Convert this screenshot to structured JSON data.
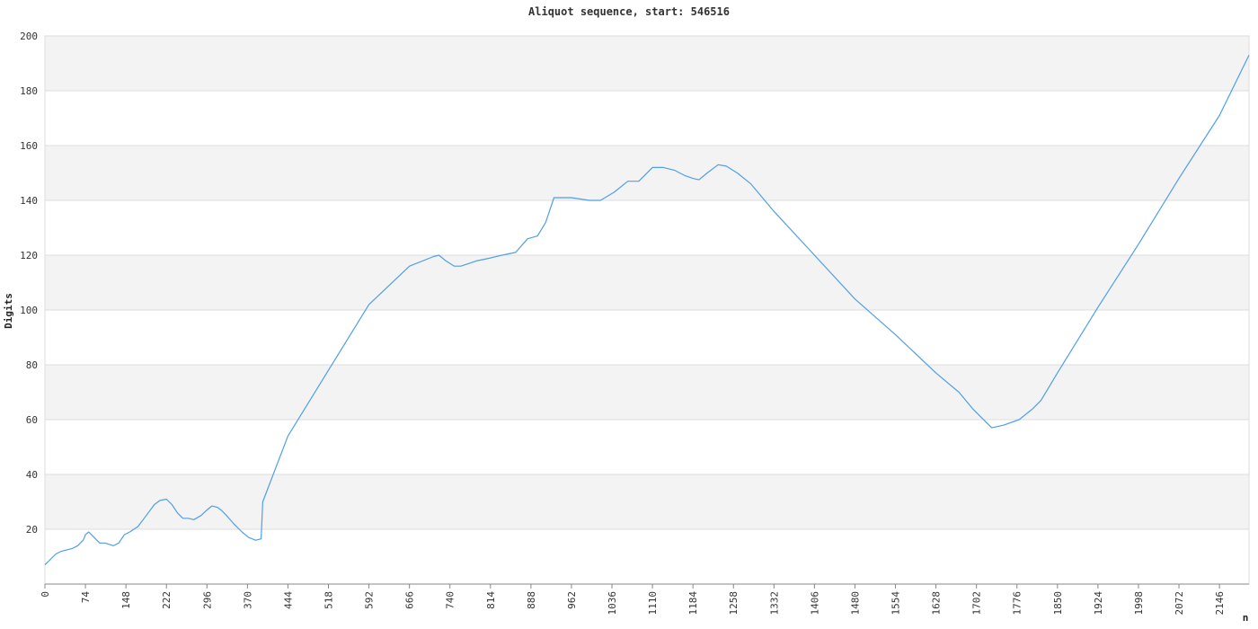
{
  "chart_data": {
    "type": "line",
    "title": "Aliquot sequence, start: 546516",
    "xlabel": "n",
    "ylabel": "Digits",
    "xlim": [
      0,
      2200
    ],
    "ylim": [
      0,
      200
    ],
    "x_ticks": [
      0,
      74,
      148,
      222,
      296,
      370,
      444,
      518,
      592,
      666,
      740,
      814,
      888,
      962,
      1036,
      1110,
      1184,
      1258,
      1332,
      1406,
      1480,
      1554,
      1628,
      1702,
      1776,
      1850,
      1924,
      1998,
      2072,
      2146
    ],
    "y_ticks": [
      20,
      40,
      60,
      80,
      100,
      120,
      140,
      160,
      180,
      200
    ],
    "grid": "horizontal-bands",
    "band_color": "#f3f3f3",
    "line_color": "#4f9fe8",
    "series": [
      {
        "x": [
          0,
          10,
          20,
          30,
          50,
          60,
          70,
          74,
          80,
          90,
          100,
          110,
          125,
          135,
          145,
          155,
          170,
          185,
          200,
          210,
          222,
          232,
          242,
          252,
          262,
          272,
          285,
          296,
          305,
          315,
          322,
          332,
          345,
          360,
          372,
          385,
          395,
          398,
          444,
          518,
          592,
          666,
          710,
          720,
          732,
          748,
          760,
          790,
          814,
          835,
          860,
          882,
          900,
          915,
          930,
          962,
          995,
          1015,
          1040,
          1065,
          1085,
          1110,
          1130,
          1150,
          1170,
          1184,
          1195,
          1210,
          1230,
          1245,
          1265,
          1290,
          1332,
          1406,
          1480,
          1554,
          1628,
          1670,
          1695,
          1730,
          1752,
          1780,
          1805,
          1820,
          1850,
          1924,
          1998,
          2072,
          2146,
          2200
        ],
        "values": [
          7,
          9,
          11,
          12,
          13,
          14,
          16,
          18,
          19,
          17,
          15,
          15,
          14,
          15,
          18,
          19,
          21,
          25,
          29,
          30.5,
          31,
          29,
          26,
          24,
          24,
          23.5,
          25,
          27,
          28.5,
          28,
          27,
          25,
          22,
          19,
          17,
          16,
          16.5,
          30,
          54,
          78,
          102,
          116,
          119.5,
          120,
          118,
          116,
          116,
          118,
          119,
          120,
          121,
          126,
          127,
          132,
          141,
          141,
          140,
          140,
          143,
          147,
          147,
          152,
          152,
          151,
          149,
          148,
          147.5,
          150,
          153,
          152.5,
          150,
          146,
          136,
          120,
          104,
          91,
          77,
          70,
          64,
          57,
          58,
          60,
          64,
          67,
          77,
          101,
          124,
          148,
          171,
          193
        ]
      }
    ]
  }
}
